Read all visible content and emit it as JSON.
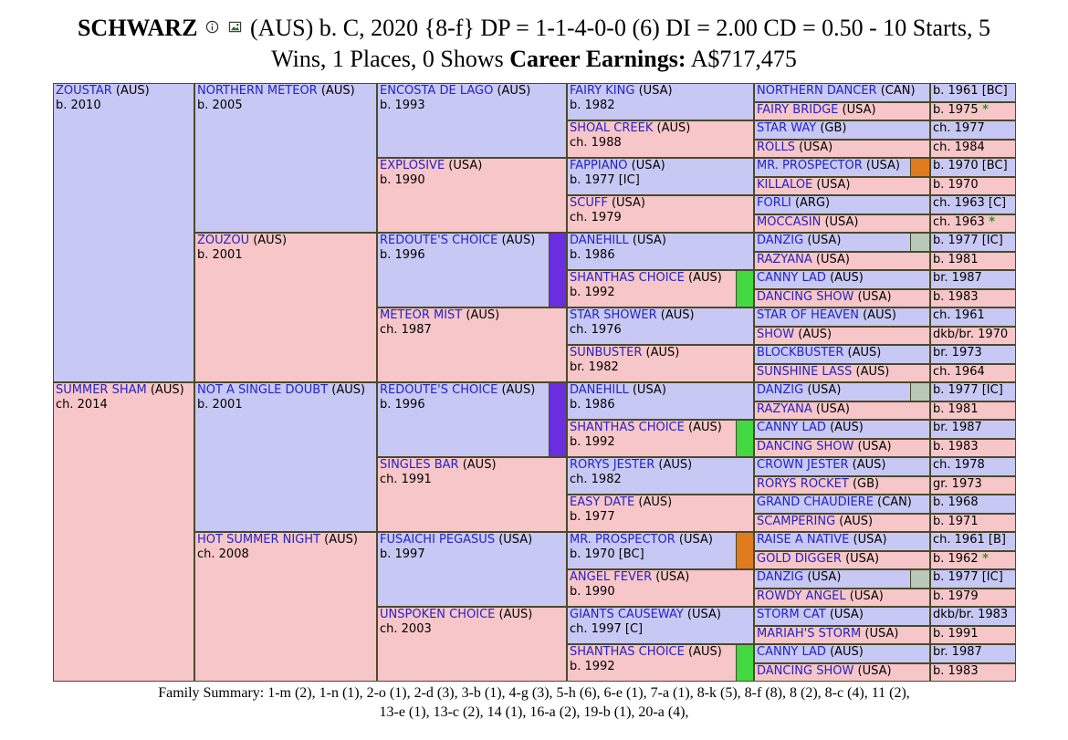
{
  "header": {
    "name": "SCHWARZ",
    "line1_rest": "(AUS) b. C, 2020 {8-f} DP = 1-1-4-0-0 (6) DI = 2.00   CD = 0.50 - 10 Starts, 5",
    "line2_start": "Wins, 1 Places, 0 Shows",
    "earnings_label": "Career Earnings:",
    "earnings_value": "A$717,475",
    "info_icon": "info-icon",
    "image_icon": "image-icon"
  },
  "colors": {
    "male": "#c8c8f4",
    "female": "#f7c6c8",
    "purple": "#6a2de0",
    "green": "#43d943",
    "orange": "#e07b1e",
    "grey": "#b9c9b9"
  },
  "pedigree": {
    "g1": [
      {
        "name": "ZOUSTAR",
        "country": "(AUS)",
        "info": "b. 2010"
      },
      {
        "name": "SUMMER SHAM",
        "country": "(AUS)",
        "info": "ch. 2014"
      }
    ],
    "g2": [
      {
        "name": "NORTHERN METEOR",
        "country": "(AUS)",
        "info": "b. 2005"
      },
      {
        "name": "ZOUZOU",
        "country": "(AUS)",
        "info": "b. 2001"
      },
      {
        "name": "NOT A SINGLE DOUBT",
        "country": "(AUS)",
        "info": "b. 2001"
      },
      {
        "name": "HOT SUMMER NIGHT",
        "country": "(AUS)",
        "info": "ch. 2008"
      }
    ],
    "g3": [
      {
        "name": "ENCOSTA DE LAGO",
        "country": "(AUS)",
        "info": "b. 1993"
      },
      {
        "name": "EXPLOSIVE",
        "country": "(USA)",
        "info": "b. 1990"
      },
      {
        "name": "REDOUTE'S CHOICE",
        "country": "(AUS)",
        "info": "b. 1996"
      },
      {
        "name": "METEOR MIST",
        "country": "(AUS)",
        "info": "ch. 1987"
      },
      {
        "name": "REDOUTE'S CHOICE",
        "country": "(AUS)",
        "info": "b. 1996"
      },
      {
        "name": "SINGLES BAR",
        "country": "(AUS)",
        "info": "ch. 1991"
      },
      {
        "name": "FUSAICHI PEGASUS",
        "country": "(USA)",
        "info": "b. 1997"
      },
      {
        "name": "UNSPOKEN CHOICE",
        "country": "(AUS)",
        "info": "ch. 2003"
      }
    ],
    "g4": [
      {
        "name": "FAIRY KING",
        "country": "(USA)",
        "info": "b. 1982"
      },
      {
        "name": "SHOAL CREEK",
        "country": "(AUS)",
        "info": "ch. 1988"
      },
      {
        "name": "FAPPIANO",
        "country": "(USA)",
        "info": "b. 1977 [IC]"
      },
      {
        "name": "SCUFF",
        "country": "(USA)",
        "info": "ch. 1979"
      },
      {
        "name": "DANEHILL",
        "country": "(USA)",
        "info": "b. 1986"
      },
      {
        "name": "SHANTHAS CHOICE",
        "country": "(AUS)",
        "info": "b. 1992"
      },
      {
        "name": "STAR SHOWER",
        "country": "(AUS)",
        "info": "ch. 1976"
      },
      {
        "name": "SUNBUSTER",
        "country": "(AUS)",
        "info": "br. 1982"
      },
      {
        "name": "DANEHILL",
        "country": "(USA)",
        "info": "b. 1986"
      },
      {
        "name": "SHANTHAS CHOICE",
        "country": "(AUS)",
        "info": "b. 1992"
      },
      {
        "name": "RORYS JESTER",
        "country": "(AUS)",
        "info": "ch. 1982"
      },
      {
        "name": "EASY DATE",
        "country": "(AUS)",
        "info": "b. 1977"
      },
      {
        "name": "MR. PROSPECTOR",
        "country": "(USA)",
        "info": "b. 1970 [BC]"
      },
      {
        "name": "ANGEL FEVER",
        "country": "(USA)",
        "info": "b. 1990"
      },
      {
        "name": "GIANTS CAUSEWAY",
        "country": "(USA)",
        "info": "ch. 1997 [C]"
      },
      {
        "name": "SHANTHAS CHOICE",
        "country": "(AUS)",
        "info": "b. 1992"
      }
    ],
    "g5": [
      {
        "name": "NORTHERN DANCER",
        "country": "(CAN)",
        "info": "b. 1961 [BC]"
      },
      {
        "name": "FAIRY BRIDGE",
        "country": "(USA)",
        "info": "b. 1975",
        "star": "*"
      },
      {
        "name": "STAR WAY",
        "country": "(GB)",
        "info": "ch. 1977"
      },
      {
        "name": "ROLLS",
        "country": "(USA)",
        "info": "ch. 1984"
      },
      {
        "name": "MR. PROSPECTOR",
        "country": "(USA)",
        "info": "b. 1970 [BC]"
      },
      {
        "name": "KILLALOE",
        "country": "(USA)",
        "info": "b. 1970"
      },
      {
        "name": "FORLI",
        "country": "(ARG)",
        "info": "ch. 1963 [C]"
      },
      {
        "name": "MOCCASIN",
        "country": "(USA)",
        "info": "ch. 1963",
        "star": "*"
      },
      {
        "name": "DANZIG",
        "country": "(USA)",
        "info": "b. 1977 [IC]"
      },
      {
        "name": "RAZYANA",
        "country": "(USA)",
        "info": "b. 1981"
      },
      {
        "name": "CANNY LAD",
        "country": "(AUS)",
        "info": "br. 1987"
      },
      {
        "name": "DANCING SHOW",
        "country": "(USA)",
        "info": "b. 1983"
      },
      {
        "name": "STAR OF HEAVEN",
        "country": "(AUS)",
        "info": "ch. 1961"
      },
      {
        "name": "SHOW",
        "country": "(AUS)",
        "info": "dkb/br. 1970"
      },
      {
        "name": "BLOCKBUSTER",
        "country": "(AUS)",
        "info": "br. 1973"
      },
      {
        "name": "SUNSHINE LASS",
        "country": "(AUS)",
        "info": "ch. 1964"
      },
      {
        "name": "DANZIG",
        "country": "(USA)",
        "info": "b. 1977 [IC]"
      },
      {
        "name": "RAZYANA",
        "country": "(USA)",
        "info": "b. 1981"
      },
      {
        "name": "CANNY LAD",
        "country": "(AUS)",
        "info": "br. 1987"
      },
      {
        "name": "DANCING SHOW",
        "country": "(USA)",
        "info": "b. 1983"
      },
      {
        "name": "CROWN JESTER",
        "country": "(AUS)",
        "info": "ch. 1978"
      },
      {
        "name": "RORYS ROCKET",
        "country": "(GB)",
        "info": "gr. 1973"
      },
      {
        "name": "GRAND CHAUDIERE",
        "country": "(CAN)",
        "info": "b. 1968"
      },
      {
        "name": "SCAMPERING",
        "country": "(AUS)",
        "info": "b. 1971"
      },
      {
        "name": "RAISE A NATIVE",
        "country": "(USA)",
        "info": "ch. 1961 [B]"
      },
      {
        "name": "GOLD DIGGER",
        "country": "(USA)",
        "info": "b. 1962",
        "star": "*"
      },
      {
        "name": "DANZIG",
        "country": "(USA)",
        "info": "b. 1977 [IC]"
      },
      {
        "name": "ROWDY ANGEL",
        "country": "(USA)",
        "info": "b. 1979"
      },
      {
        "name": "STORM CAT",
        "country": "(USA)",
        "info": "dkb/br. 1983"
      },
      {
        "name": "MARIAH'S STORM",
        "country": "(USA)",
        "info": "b. 1991"
      },
      {
        "name": "CANNY LAD",
        "country": "(AUS)",
        "info": "br. 1987"
      },
      {
        "name": "DANCING SHOW",
        "country": "(USA)",
        "info": "b. 1983"
      }
    ]
  },
  "footer": {
    "line1": "Family Summary: 1-m (2), 1-n (1), 2-o (1), 2-d (3), 3-b (1), 4-g (3), 5-h (6), 6-e (1), 7-a (1), 8-k (5), 8-f (8), 8 (2), 8-c (4), 11 (2),",
    "line2": "13-e (1), 13-c (2), 14 (1), 16-a (2), 19-b (1), 20-a (4),"
  }
}
